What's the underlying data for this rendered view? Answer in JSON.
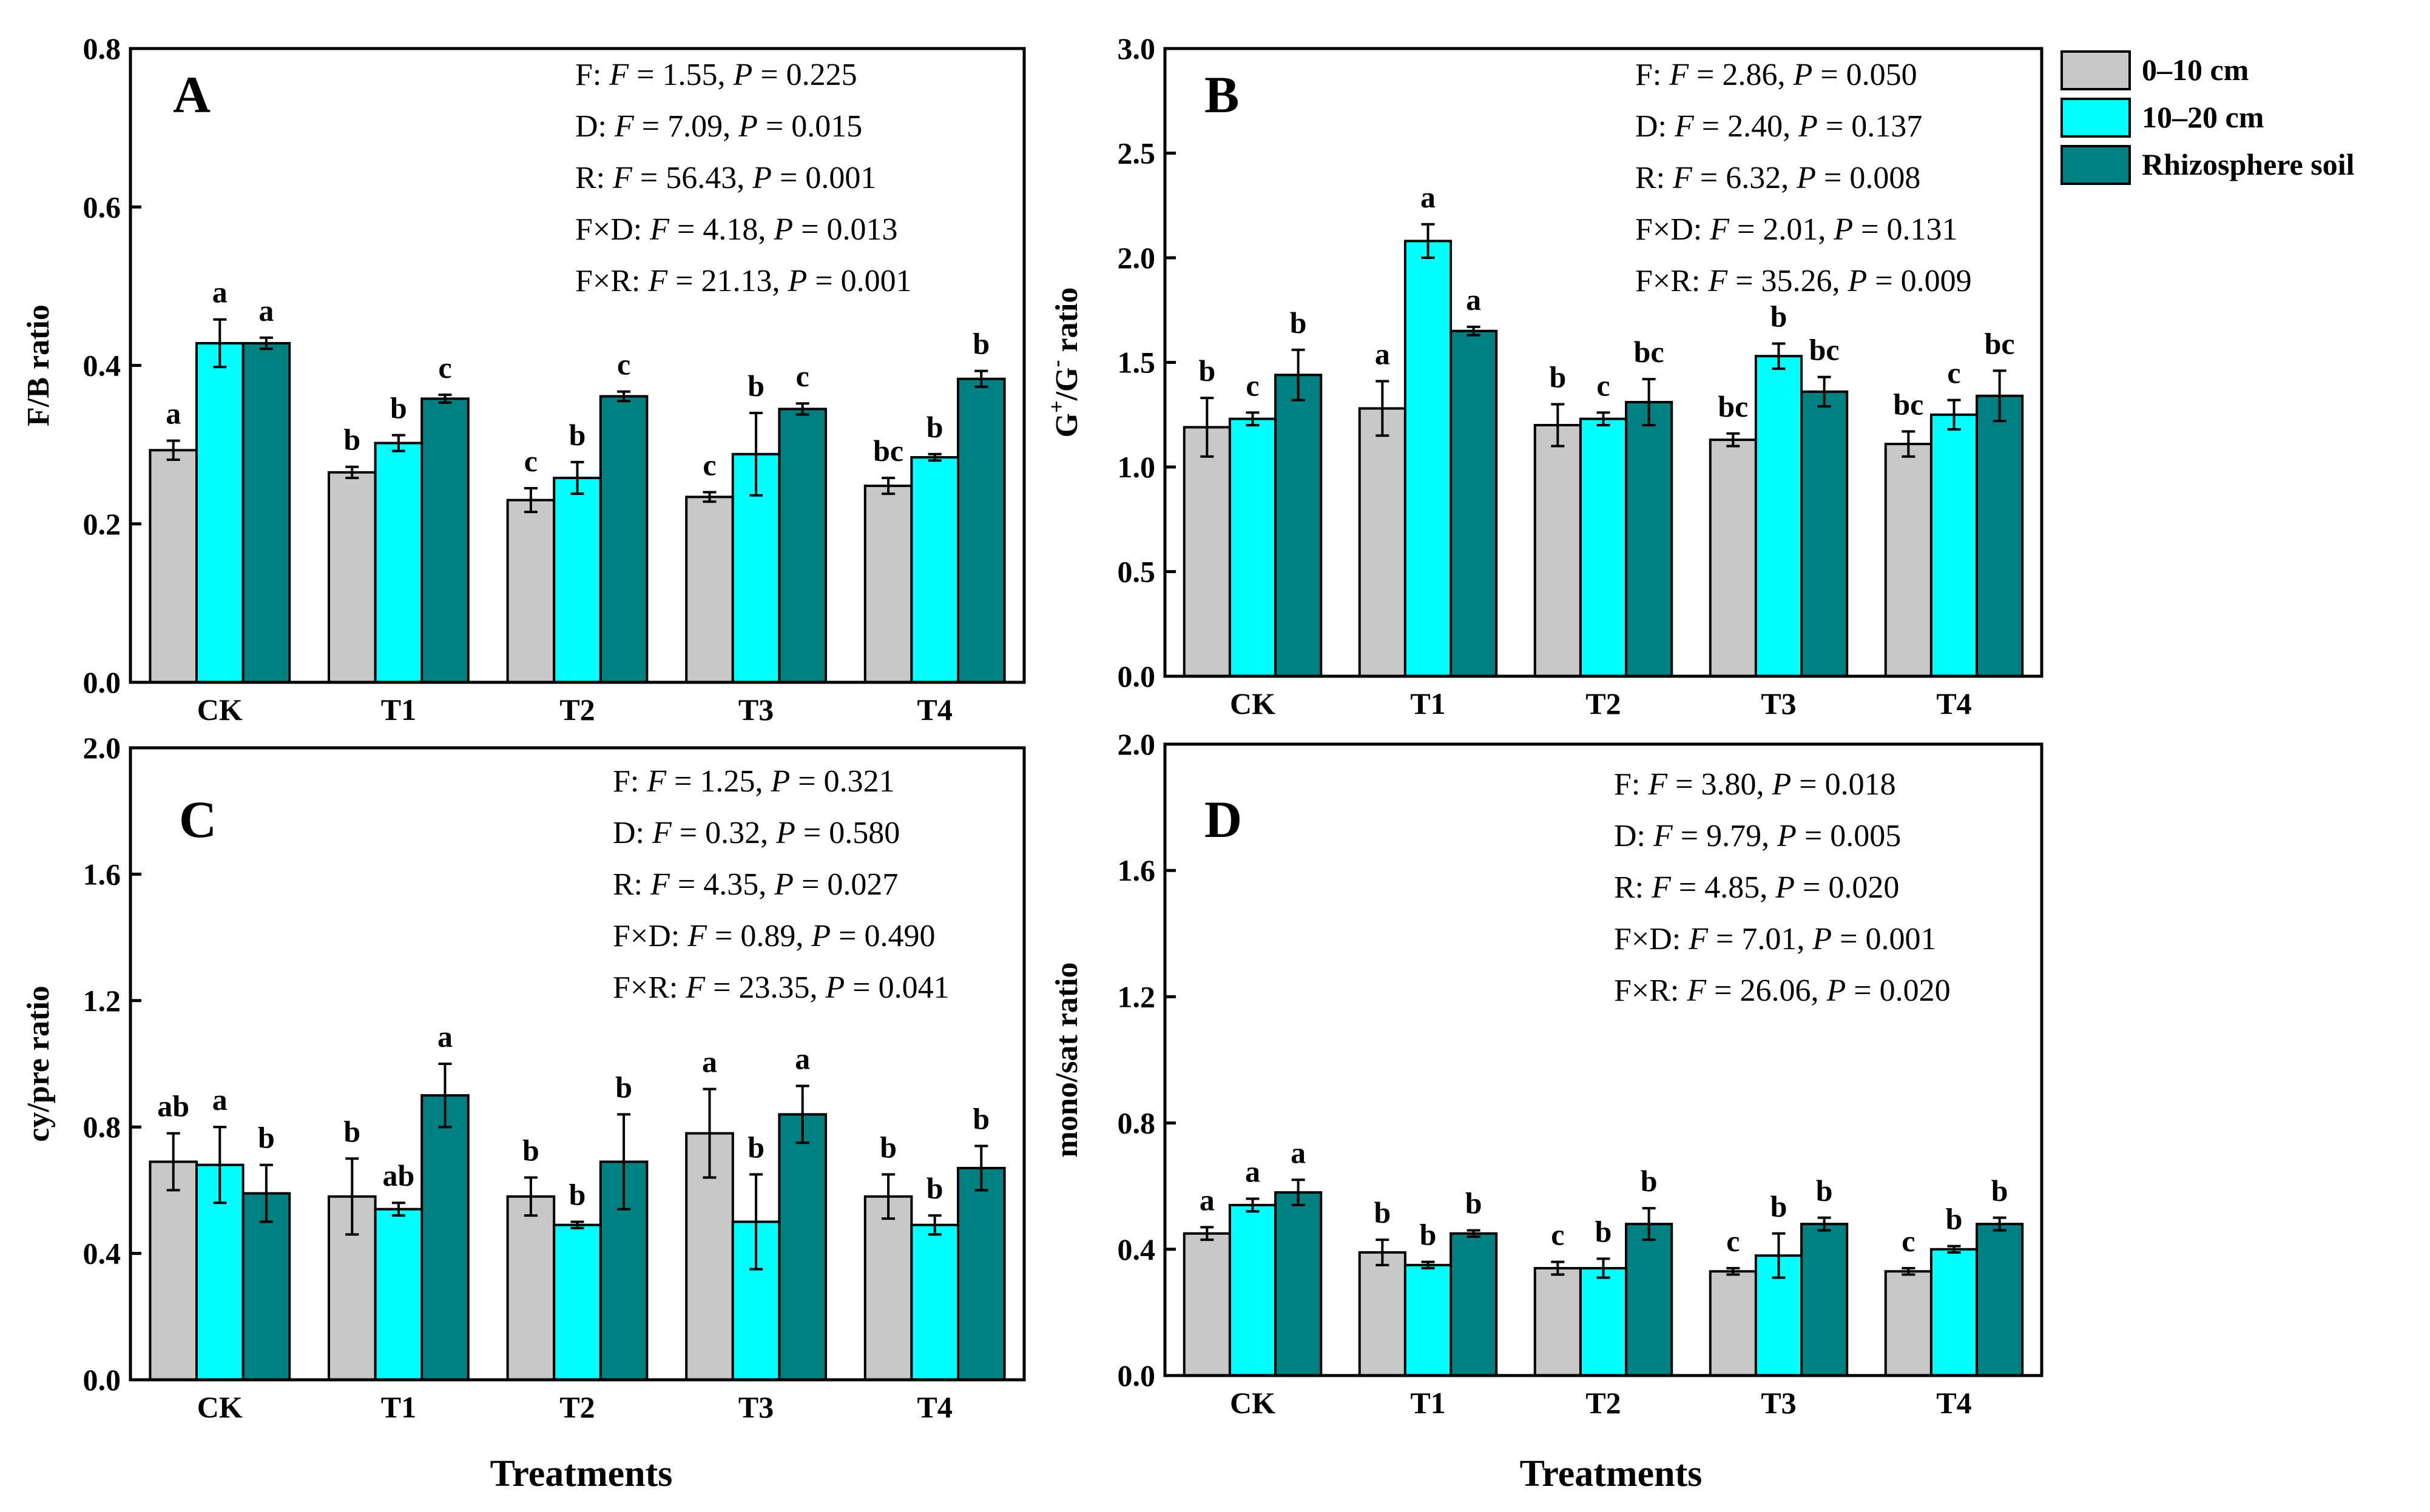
{
  "colors": {
    "series": [
      "#c8c8c8",
      "#00ffff",
      "#008080"
    ]
  },
  "legend": {
    "items": [
      "0–10 cm",
      "10–20 cm",
      "Rhizosphere soil"
    ]
  },
  "x_axis_title": "Treatments",
  "chart_data": [
    {
      "type": "bar",
      "panel": "A",
      "ylabel": "F/B ratio",
      "ylim": [
        0,
        0.8
      ],
      "yticks": [
        "0.0",
        "0.2",
        "0.4",
        "0.6",
        "0.8"
      ],
      "categories": [
        "CK",
        "T1",
        "T2",
        "T3",
        "T4"
      ],
      "series": [
        {
          "name": "0–10 cm",
          "values": [
            0.293,
            0.265,
            0.23,
            0.234,
            0.248
          ],
          "errors": [
            0.012,
            0.007,
            0.015,
            0.006,
            0.01
          ],
          "labels": [
            "a",
            "b",
            "c",
            "c",
            "bc"
          ]
        },
        {
          "name": "10–20 cm",
          "values": [
            0.428,
            0.302,
            0.258,
            0.288,
            0.284
          ],
          "errors": [
            0.03,
            0.01,
            0.02,
            0.052,
            0.004
          ],
          "labels": [
            "a",
            "b",
            "b",
            "b",
            "b"
          ]
        },
        {
          "name": "Rhizosphere soil",
          "values": [
            0.428,
            0.358,
            0.361,
            0.345,
            0.383
          ],
          "errors": [
            0.007,
            0.005,
            0.006,
            0.007,
            0.01
          ],
          "labels": [
            "a",
            "c",
            "c",
            "c",
            "b"
          ]
        }
      ],
      "stats": [
        {
          "factor": "F:",
          "F": "1.55",
          "P": "0.225"
        },
        {
          "factor": "D:",
          "F": "7.09",
          "P": "0.015"
        },
        {
          "factor": "R:",
          "F": "56.43",
          "P": "0.001"
        },
        {
          "factor": "F×D:",
          "F": "4.18",
          "P": "0.013"
        },
        {
          "factor": "F×R:",
          "F": "21.13",
          "P": "0.001"
        }
      ]
    },
    {
      "type": "bar",
      "panel": "B",
      "ylabel": "G+/G- ratio",
      "ylim": [
        0,
        3.0
      ],
      "yticks": [
        "0.0",
        "0.5",
        "1.0",
        "1.5",
        "2.0",
        "2.5",
        "3.0"
      ],
      "categories": [
        "CK",
        "T1",
        "T2",
        "T3",
        "T4"
      ],
      "series": [
        {
          "name": "0–10 cm",
          "values": [
            1.19,
            1.28,
            1.2,
            1.13,
            1.11
          ],
          "errors": [
            0.14,
            0.13,
            0.1,
            0.03,
            0.06
          ],
          "labels": [
            "b",
            "a",
            "b",
            "bc",
            "bc"
          ]
        },
        {
          "name": "10–20 cm",
          "values": [
            1.23,
            2.08,
            1.23,
            1.53,
            1.25
          ],
          "errors": [
            0.03,
            0.08,
            0.03,
            0.06,
            0.07
          ],
          "labels": [
            "c",
            "a",
            "c",
            "b",
            "c"
          ]
        },
        {
          "name": "Rhizosphere soil",
          "values": [
            1.44,
            1.65,
            1.31,
            1.36,
            1.34
          ],
          "errors": [
            0.12,
            0.02,
            0.11,
            0.07,
            0.12
          ],
          "labels": [
            "b",
            "a",
            "bc",
            "bc",
            "bc"
          ]
        }
      ],
      "stats": [
        {
          "factor": "F:",
          "F": "2.86",
          "P": "0.050"
        },
        {
          "factor": "D:",
          "F": "2.40",
          "P": "0.137"
        },
        {
          "factor": "R:",
          "F": "6.32",
          "P": "0.008"
        },
        {
          "factor": "F×D:",
          "F": "2.01",
          "P": "0.131"
        },
        {
          "factor": "F×R:",
          "F": "35.26",
          "P": "0.009"
        }
      ]
    },
    {
      "type": "bar",
      "panel": "C",
      "ylabel": "cy/pre ratio",
      "ylim": [
        0,
        2.0
      ],
      "yticks": [
        "0.0",
        "0.4",
        "0.8",
        "1.2",
        "1.6",
        "2.0"
      ],
      "categories": [
        "CK",
        "T1",
        "T2",
        "T3",
        "T4"
      ],
      "series": [
        {
          "name": "0–10 cm",
          "values": [
            0.69,
            0.58,
            0.58,
            0.78,
            0.58
          ],
          "errors": [
            0.09,
            0.12,
            0.06,
            0.14,
            0.07
          ],
          "labels": [
            "ab",
            "b",
            "b",
            "a",
            "b"
          ]
        },
        {
          "name": "10–20 cm",
          "values": [
            0.68,
            0.54,
            0.49,
            0.5,
            0.49
          ],
          "errors": [
            0.12,
            0.02,
            0.01,
            0.15,
            0.03
          ],
          "labels": [
            "a",
            "ab",
            "b",
            "b",
            "b"
          ]
        },
        {
          "name": "Rhizosphere soil",
          "values": [
            0.59,
            0.9,
            0.69,
            0.84,
            0.67
          ],
          "errors": [
            0.09,
            0.1,
            0.15,
            0.09,
            0.07
          ],
          "labels": [
            "b",
            "a",
            "b",
            "a",
            "b"
          ]
        }
      ],
      "stats": [
        {
          "factor": "F:",
          "F": "1.25",
          "P": "0.321"
        },
        {
          "factor": "D:",
          "F": "0.32",
          "P": "0.580"
        },
        {
          "factor": "R:",
          "F": "4.35",
          "P": "0.027"
        },
        {
          "factor": "F×D:",
          "F": "0.89",
          "P": "0.490"
        },
        {
          "factor": "F×R:",
          "F": "23.35",
          "P": "0.041"
        }
      ]
    },
    {
      "type": "bar",
      "panel": "D",
      "ylabel": "mono/sat ratio",
      "ylim": [
        0,
        2.0
      ],
      "yticks": [
        "0.0",
        "0.4",
        "0.8",
        "1.2",
        "1.6",
        "2.0"
      ],
      "categories": [
        "CK",
        "T1",
        "T2",
        "T3",
        "T4"
      ],
      "series": [
        {
          "name": "0–10 cm",
          "values": [
            0.45,
            0.39,
            0.34,
            0.33,
            0.33
          ],
          "errors": [
            0.02,
            0.04,
            0.02,
            0.01,
            0.01
          ],
          "labels": [
            "a",
            "b",
            "c",
            "c",
            "c"
          ]
        },
        {
          "name": "10–20 cm",
          "values": [
            0.54,
            0.35,
            0.34,
            0.38,
            0.4
          ],
          "errors": [
            0.02,
            0.01,
            0.03,
            0.07,
            0.01
          ],
          "labels": [
            "a",
            "b",
            "b",
            "b",
            "b"
          ]
        },
        {
          "name": "Rhizosphere soil",
          "values": [
            0.58,
            0.45,
            0.48,
            0.48,
            0.48
          ],
          "errors": [
            0.04,
            0.01,
            0.05,
            0.02,
            0.02
          ],
          "labels": [
            "a",
            "b",
            "b",
            "b",
            "b"
          ]
        }
      ],
      "stats": [
        {
          "factor": "F:",
          "F": "3.80",
          "P": "0.018"
        },
        {
          "factor": "D:",
          "F": "9.79",
          "P": "0.005"
        },
        {
          "factor": "R:",
          "F": "4.85",
          "P": "0.020"
        },
        {
          "factor": "F×D:",
          "F": "7.01",
          "P": "0.001"
        },
        {
          "factor": "F×R:",
          "F": "26.06",
          "P": "0.020"
        }
      ]
    }
  ]
}
